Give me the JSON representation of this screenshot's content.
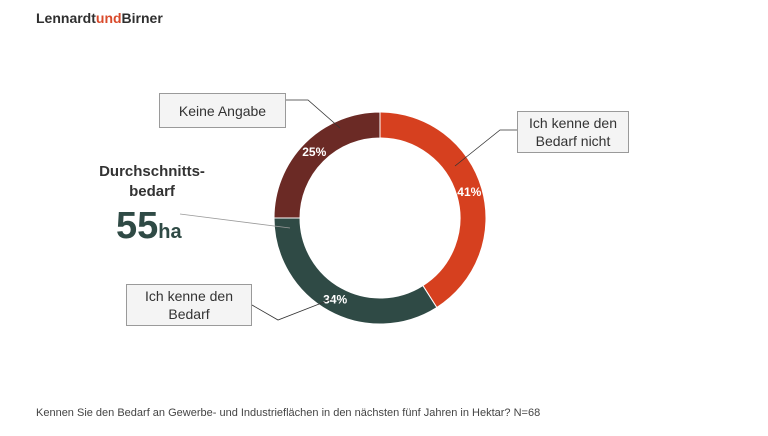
{
  "brand": {
    "left": "Lennardt",
    "mid": "und",
    "right": "Birner"
  },
  "average": {
    "label": "Durchschnitts-\nbedarf",
    "value": "55",
    "unit": "ha"
  },
  "chart_data": {
    "type": "pie",
    "donut": true,
    "categories": [
      "Ich kenne den Bedarf nicht",
      "Ich kenne den Bedarf",
      "Keine Angabe"
    ],
    "values": [
      41,
      34,
      25
    ],
    "labels": [
      "41%",
      "34%",
      "25%"
    ],
    "colors": [
      "#d6401f",
      "#2f4a45",
      "#6b2a25"
    ]
  },
  "callouts": {
    "nicht": "Ich kenne den\nBedarf nicht",
    "bedarf": "Ich kenne den\nBedarf",
    "keine": "Keine Angabe"
  },
  "footer": "Kennen Sie den Bedarf an Gewerbe- und Industrieflächen in den nächsten fünf Jahren in Hektar? N=68"
}
